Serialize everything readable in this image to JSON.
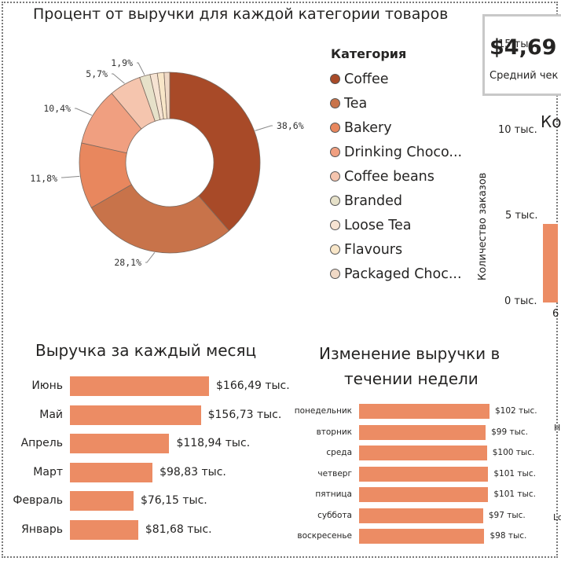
{
  "colors": {
    "bar": "#ec8c64",
    "slices": [
      "#a84a28",
      "#c8734a",
      "#e8875e",
      "#f09f80",
      "#f5c5ae",
      "#e6e1c9",
      "#f6e3d2",
      "#f8e6c8",
      "#f0d9c6"
    ]
  },
  "donut": {
    "title": "Процент от выручки для каждой категории товаров",
    "legend_title": "Категория",
    "labels": [
      "38,6%",
      "28,1%",
      "11,8%",
      "10,4%",
      "5,7%",
      "1,9%"
    ]
  },
  "kpi": {
    "value": "$4,69",
    "label": "Средний чек"
  },
  "orders": {
    "title": "Ко",
    "ylabel": "Количество заказов",
    "yticks": [
      "15 тыс.",
      "10 тыс.",
      "5 тыс.",
      "0 тыс."
    ],
    "xtick": "6"
  },
  "monthly": {
    "title": "Выручка за каждый месяц",
    "value_labels": [
      "$166,49 тыс.",
      "$156,73 тыс.",
      "$118,94 тыс.",
      "$98,83 тыс.",
      "$76,15 тыс.",
      "$81,68 тыс."
    ]
  },
  "weekly": {
    "title_line1": "Изменение выручки в",
    "title_line2": "течении недели",
    "value_labels": [
      "$102 тыс.",
      "$99 тыс.",
      "$100 тыс.",
      "$101 тыс.",
      "$101 тыс.",
      "$97 тыс.",
      "$98 тыс."
    ]
  },
  "edge_labels": {
    "h": "Н",
    "lo": "Lo"
  },
  "chart_data": [
    {
      "type": "pie",
      "title": "Процент от выручки для каждой категории товаров",
      "legend_title": "Категория",
      "categories": [
        "Coffee",
        "Tea",
        "Bakery",
        "Drinking Choco...",
        "Coffee beans",
        "Branded",
        "Loose Tea",
        "Flavours",
        "Packaged Choc..."
      ],
      "values": [
        38.6,
        28.1,
        11.8,
        10.4,
        5.7,
        1.9,
        1.3,
        1.2,
        1.0
      ],
      "legend_placement": "right"
    },
    {
      "type": "bar",
      "title": "Выручка за каждый месяц",
      "categories": [
        "Июнь",
        "Май",
        "Апрель",
        "Март",
        "Февраль",
        "Январь"
      ],
      "values": [
        166.49,
        156.73,
        118.94,
        98.83,
        76.15,
        81.68
      ]
    },
    {
      "type": "bar",
      "title": "Изменение выручки в течении недели",
      "categories": [
        "понедельник",
        "вторник",
        "среда",
        "четверг",
        "пятница",
        "суббота",
        "воскресенье"
      ],
      "values": [
        102,
        99,
        100,
        101,
        101,
        97,
        98
      ]
    },
    {
      "type": "bar",
      "title": "Ко",
      "ylabel": "Количество заказов",
      "ylim": [
        0,
        18
      ],
      "categories": [
        "6"
      ],
      "values": [
        5
      ]
    }
  ]
}
